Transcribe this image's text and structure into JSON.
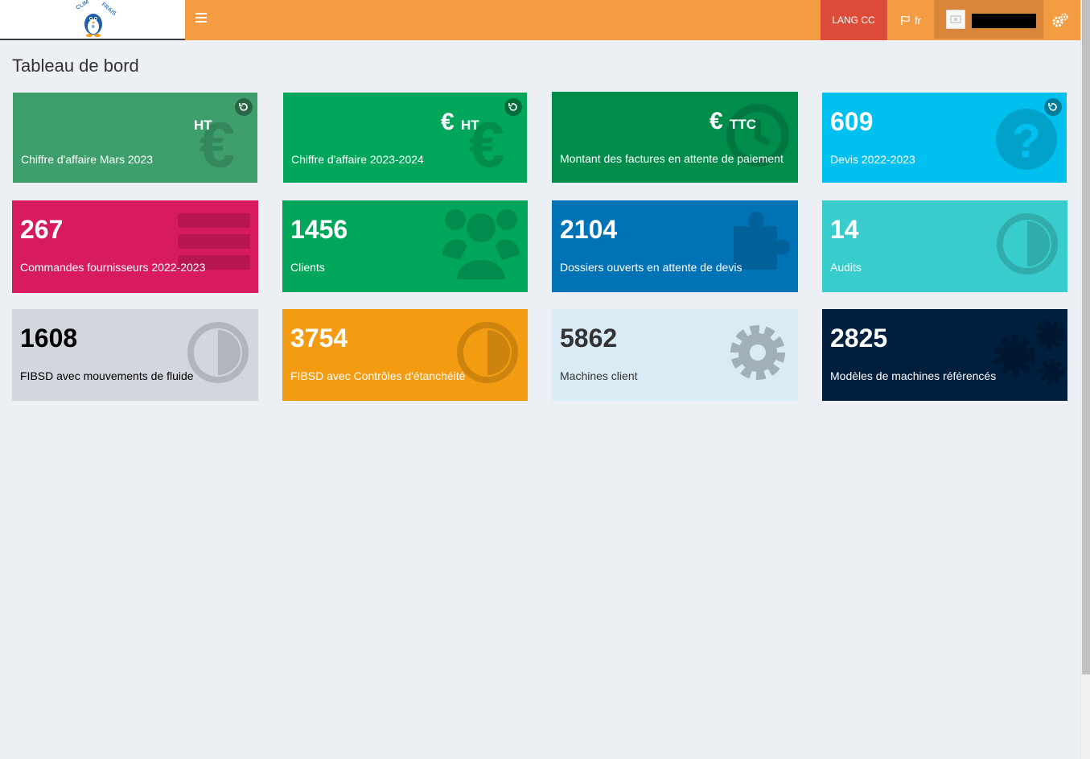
{
  "header": {
    "lang_button": "LANG CC",
    "lang_current": "fr"
  },
  "page": {
    "title": "Tableau de bord"
  },
  "boxes": {
    "ca_month": {
      "value": "",
      "unit": "HT",
      "label": "Chiffre d'affaire Mars 2023"
    },
    "ca_year": {
      "value": "€",
      "unit": "HT",
      "label": "Chiffre d'affaire 2023-2024"
    },
    "invoices": {
      "value": "€",
      "unit": "TTC",
      "label": "Montant des factures en attente de paiement"
    },
    "devis": {
      "value": "609",
      "label": "Devis 2022-2023"
    },
    "orders": {
      "value": "267",
      "label": "Commandes fournisseurs 2022-2023"
    },
    "clients": {
      "value": "1456",
      "label": "Clients"
    },
    "dossiers": {
      "value": "2104",
      "label": "Dossiers ouverts en attente de devis"
    },
    "audits": {
      "value": "14",
      "label": "Audits"
    },
    "fibsd_fluide": {
      "value": "1608",
      "label": "FIBSD avec mouvements de fluide"
    },
    "fibsd_etanch": {
      "value": "3754",
      "label": "FIBSD avec Contrôles d'étanchéité"
    },
    "machines": {
      "value": "5862",
      "label": "Machines client"
    },
    "modeles": {
      "value": "2825",
      "label": "Modèles de machines référencés"
    }
  },
  "colors": {
    "header": "#f39c41",
    "ca_month": "#3e9f6c",
    "ca_year": "#00a65a",
    "invoices": "#008d4c",
    "devis": "#00c0ef",
    "orders": "#d81b60",
    "clients": "#00a65a",
    "dossiers": "#0073b7",
    "audits": "#39cccc",
    "fibsd_fluide": "#d2d6de",
    "fibsd_etanch": "#f39c12",
    "machines": "#d9ebf5",
    "modeles": "#001f3f"
  }
}
